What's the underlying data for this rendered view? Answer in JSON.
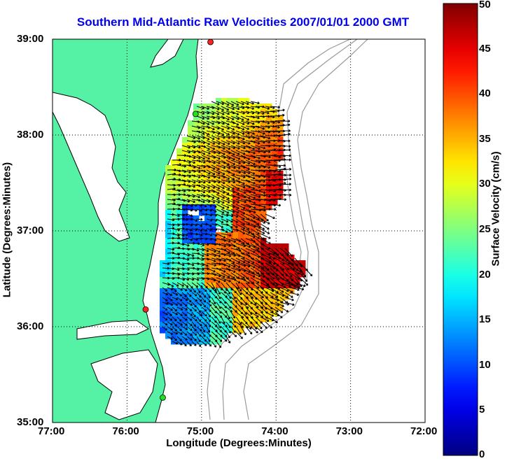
{
  "title": "Southern Mid-Atlantic Raw Velocities 2007/01/01 2000 GMT",
  "xlabel": "Longitude (Degrees:Minutes)",
  "ylabel": "Latitude (Degrees:Minutes)",
  "x_ticks": [
    "77:00",
    "76:00",
    "75:00",
    "74:00",
    "73:00",
    "72:00"
  ],
  "y_ticks": [
    "39:00",
    "38:00",
    "37:00",
    "36:00",
    "35:00"
  ],
  "colorbar": {
    "label": "Surface Velocity (cm/s)",
    "ticks": [
      "0",
      "5",
      "10",
      "15",
      "20",
      "25",
      "30",
      "35",
      "40",
      "45",
      "50"
    ],
    "min": 0,
    "max": 50,
    "colormap": "jet"
  },
  "map": {
    "lon_range": [
      -77,
      -72
    ],
    "lat_range": [
      35,
      39
    ],
    "land_color": "#55f2a6",
    "grid": "dotted",
    "stations": [
      {
        "lon": -74.88,
        "lat": 38.97,
        "color": "#ff2020"
      },
      {
        "lon": -75.08,
        "lat": 38.22,
        "color": "#20e020"
      },
      {
        "lon": -75.75,
        "lat": 36.18,
        "color": "#ff2020"
      },
      {
        "lon": -75.52,
        "lat": 35.26,
        "color": "#20e020"
      }
    ]
  },
  "colors": {
    "title": "#0000ee",
    "bathymetry": "#9a9a9a"
  }
}
